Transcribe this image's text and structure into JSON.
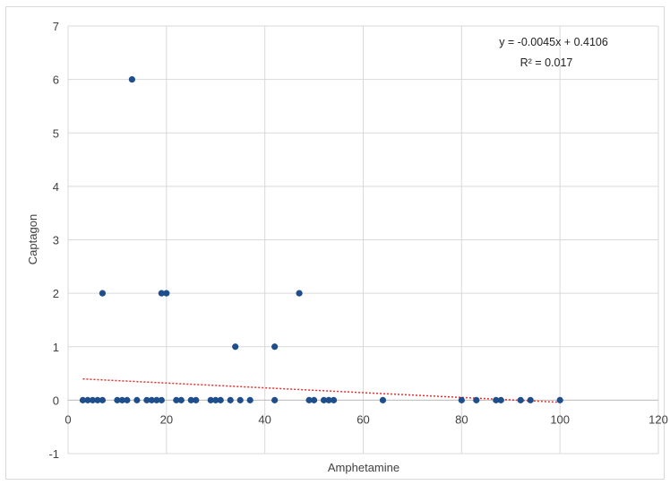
{
  "chart_data": {
    "type": "scatter",
    "title": "",
    "xlabel": "Amphetamine",
    "ylabel": "Captagon",
    "xlim": [
      0,
      120
    ],
    "ylim": [
      -1,
      7
    ],
    "x_ticks": [
      0,
      20,
      40,
      60,
      80,
      100,
      120
    ],
    "y_ticks": [
      -1,
      0,
      1,
      2,
      3,
      4,
      5,
      6,
      7
    ],
    "grid": true,
    "legend": "none",
    "marker_color": "#1f4e8c",
    "trendline_color": "#e03030",
    "series": [
      {
        "points": [
          [
            3,
            0
          ],
          [
            4,
            0
          ],
          [
            5,
            0
          ],
          [
            6,
            0
          ],
          [
            7,
            0
          ],
          [
            10,
            0
          ],
          [
            11,
            0
          ],
          [
            12,
            0
          ],
          [
            14,
            0
          ],
          [
            16,
            0
          ],
          [
            17,
            0
          ],
          [
            18,
            0
          ],
          [
            19,
            0
          ],
          [
            22,
            0
          ],
          [
            23,
            0
          ],
          [
            25,
            0
          ],
          [
            26,
            0
          ],
          [
            29,
            0
          ],
          [
            30,
            0
          ],
          [
            31,
            0
          ],
          [
            33,
            0
          ],
          [
            35,
            0
          ],
          [
            37,
            0
          ],
          [
            42,
            0
          ],
          [
            49,
            0
          ],
          [
            50,
            0
          ],
          [
            52,
            0
          ],
          [
            53,
            0
          ],
          [
            54,
            0
          ],
          [
            64,
            0
          ],
          [
            80,
            0
          ],
          [
            83,
            0
          ],
          [
            87,
            0
          ],
          [
            88,
            0
          ],
          [
            92,
            0
          ],
          [
            94,
            0
          ],
          [
            100,
            0
          ],
          [
            7,
            2
          ],
          [
            19,
            2
          ],
          [
            20,
            2
          ],
          [
            47,
            2
          ],
          [
            34,
            1
          ],
          [
            42,
            1
          ],
          [
            13,
            6
          ]
        ]
      }
    ],
    "trendline": {
      "slope": -0.0045,
      "intercept": 0.4106,
      "x_range": [
        3,
        100
      ],
      "equation": "y = -0.0045x + 0.4106",
      "r_squared": "R² = 0.017"
    }
  }
}
